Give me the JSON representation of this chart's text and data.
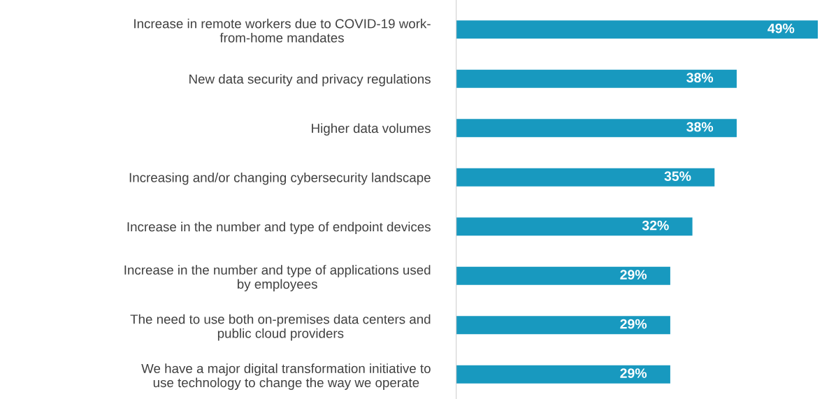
{
  "chart_data": {
    "type": "bar",
    "orientation": "horizontal",
    "categories": [
      "Increase in remote workers due to COVID-19 work-\nfrom-home mandates",
      "New data security and privacy regulations",
      "Higher data volumes",
      "Increasing and/or changing cybersecurity landscape",
      "Increase in the number and type of endpoint devices",
      "Increase in the number and type of applications used\nby employees",
      "The need to use both on-premises data centers and\npublic cloud providers",
      "We have a major digital transformation initiative to\nuse technology to change the way we operate"
    ],
    "values": [
      49,
      38,
      38,
      35,
      32,
      29,
      29,
      29
    ],
    "value_labels": [
      "49%",
      "38%",
      "38%",
      "35%",
      "32%",
      "29%",
      "29%",
      "29%"
    ],
    "color": "#1899bf",
    "grid": false,
    "legend": false
  }
}
